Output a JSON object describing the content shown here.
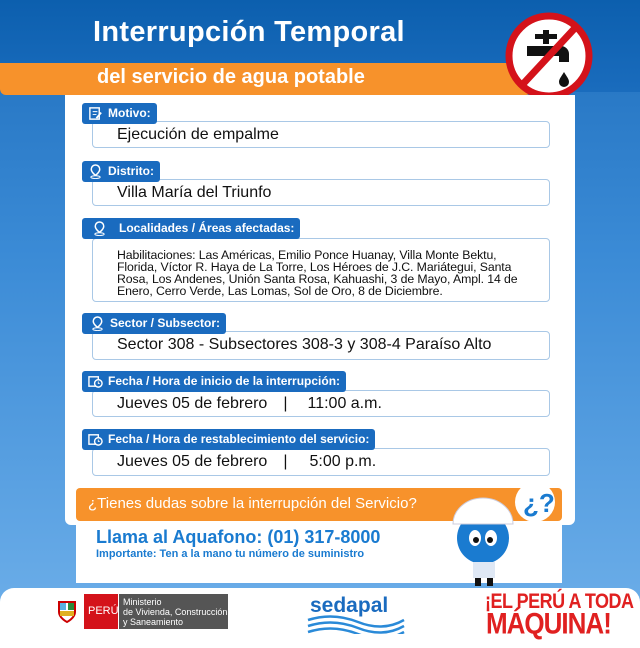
{
  "header": {
    "title": "Interrupción Temporal",
    "subtitle": "del servicio de agua potable",
    "icon": "no-water-tap-icon"
  },
  "fields": [
    {
      "label": "Motivo:",
      "value": "Ejecución de empalme",
      "icon": "clipboard-edit-icon"
    },
    {
      "label": "Distrito:",
      "value": "Villa María del Triunfo",
      "icon": "location-pin-icon"
    },
    {
      "label": "Localidades / Áreas afectadas:",
      "value": "Habilitaciones: Las Américas, Emilio Ponce Huanay, Villa Monte Bektu, Florida, Víctor R. Haya de La Torre, Los Héroes de J.C. Mariátegui, Santa Rosa, Los Andenes, Unión Santa Rosa, Kahuashi, 3 de Mayo, Ampl. 14 de Enero, Cerro Verde, Las Lomas, Sol de Oro, 8 de Diciembre.",
      "icon": "location-pin-icon"
    },
    {
      "label": "Sector / Subsector:",
      "value": "Sector 308 - Subsectores 308-3 y 308-4 Paraíso Alto",
      "icon": "location-pin-icon"
    },
    {
      "label": "Fecha / Hora de inicio de la interrupción:",
      "date": "Jueves 05 de febrero",
      "sep": "|",
      "time": "11:00 a.m.",
      "icon": "calendar-clock-icon"
    },
    {
      "label": "Fecha / Hora de restablecimiento del servicio:",
      "date": "Jueves 05 de febrero",
      "sep": "|",
      "time": "5:00 p.m.",
      "icon": "calendar-clock-icon"
    }
  ],
  "contact": {
    "question": "¿Tienes dudas sobre la interrupción del Servicio?",
    "call": "Llama al Aquafono: (01) 317-8000",
    "important": "Importante: Ten a la mano tu número de suministro",
    "mascot_bubble": "¿?"
  },
  "footer": {
    "peru": "PERÚ",
    "ministry": [
      "Ministerio",
      "de Vivienda, Construcción",
      "y Saneamiento"
    ],
    "sedapal": "sedapal",
    "slogan1": "¡EL PERÚ A TODA",
    "slogan2": "MÁQUINA!"
  },
  "colors": {
    "blue": "#1a6bbf",
    "orange": "#f7922b",
    "red": "#e02020"
  }
}
